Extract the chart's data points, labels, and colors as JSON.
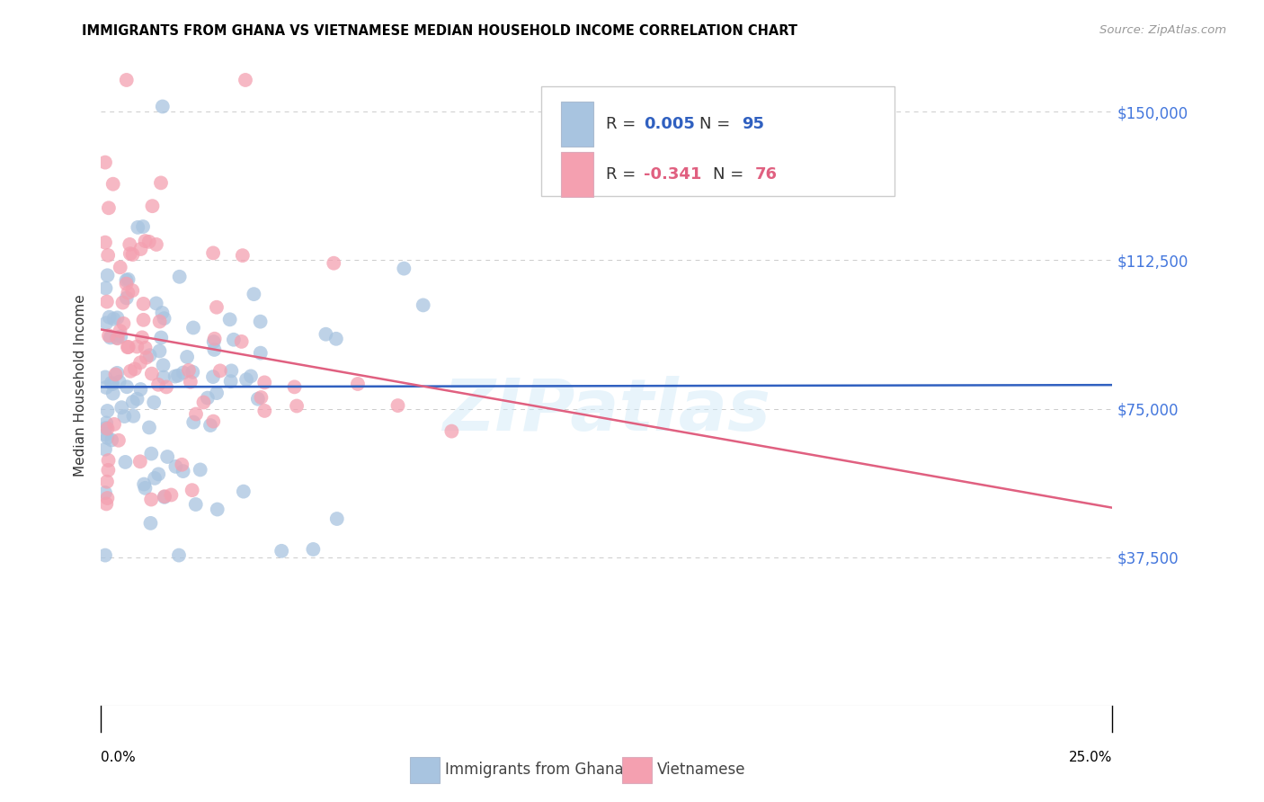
{
  "title": "IMMIGRANTS FROM GHANA VS VIETNAMESE MEDIAN HOUSEHOLD INCOME CORRELATION CHART",
  "source": "Source: ZipAtlas.com",
  "ylabel": "Median Household Income",
  "yticks": [
    0,
    37500,
    75000,
    112500,
    150000
  ],
  "ytick_labels": [
    "",
    "$37,500",
    "$75,000",
    "$112,500",
    "$150,000"
  ],
  "xlim": [
    0.0,
    0.25
  ],
  "ylim": [
    0,
    162000
  ],
  "ghana_R": 0.005,
  "ghana_N": 95,
  "viet_R": -0.341,
  "viet_N": 76,
  "ghana_color": "#a8c4e0",
  "viet_color": "#f4a0b0",
  "ghana_line_color": "#3060c0",
  "viet_line_color": "#e06080",
  "watermark": "ZIPatlas",
  "background_color": "#ffffff",
  "grid_color": "#cccccc",
  "title_fontsize": 11,
  "source_color": "#999999",
  "ylabel_color": "#333333",
  "right_tick_color": "#4477dd"
}
